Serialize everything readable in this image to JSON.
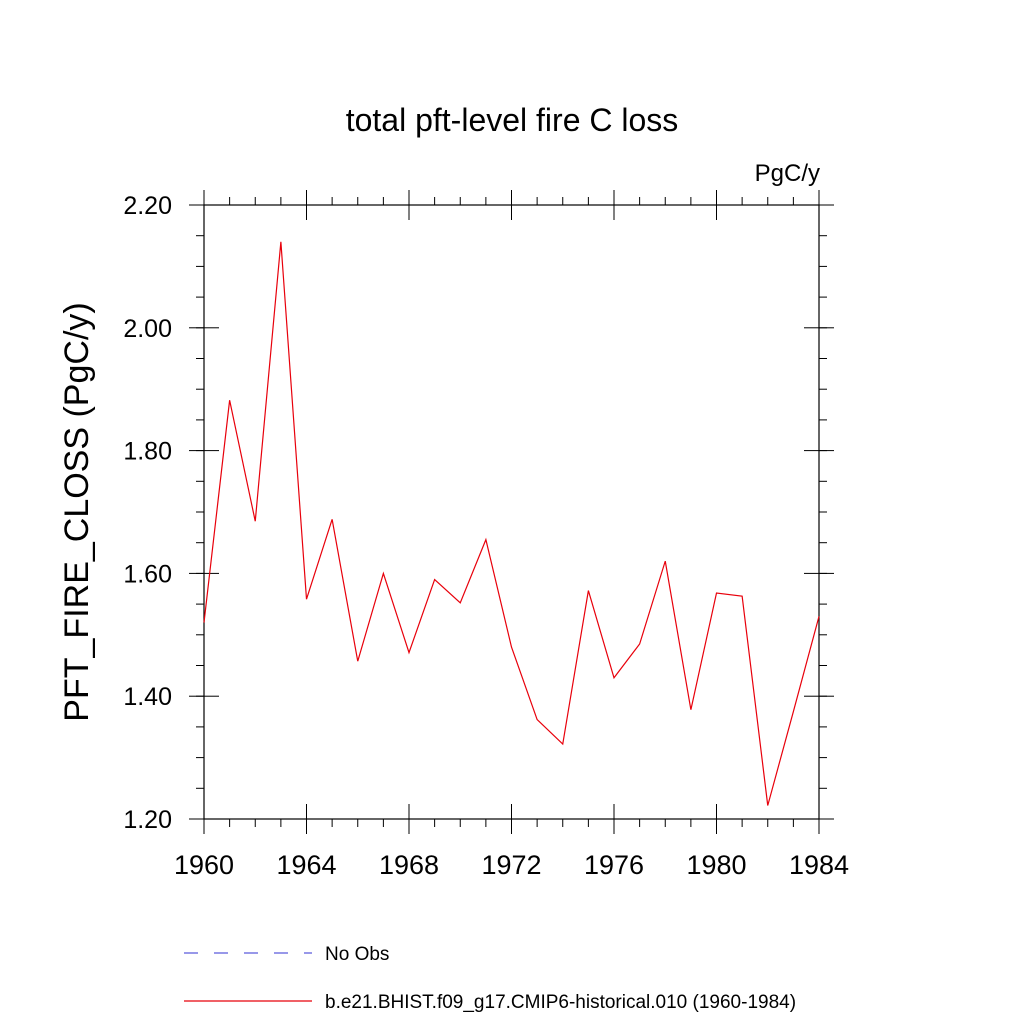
{
  "chart_data": {
    "type": "line",
    "title": "total pft-level fire C loss",
    "units": "PgC/y",
    "ylabel": "PFT_FIRE_CLOSS  (PgC/y)",
    "xlabel": "",
    "xlim": [
      1960,
      1984
    ],
    "ylim": [
      1.2,
      2.2
    ],
    "x_major_ticks": [
      1960,
      1964,
      1968,
      1972,
      1976,
      1980,
      1984
    ],
    "x_minor_step": 1,
    "y_major_ticks": [
      1.2,
      1.4,
      1.6,
      1.8,
      2.0,
      2.2
    ],
    "y_tick_labels": [
      "1.20",
      "1.40",
      "1.60",
      "1.80",
      "2.00",
      "2.20"
    ],
    "y_minor_step": 0.05,
    "grid": false,
    "legend_placement": "bottom",
    "x": [
      1960,
      1961,
      1962,
      1963,
      1964,
      1965,
      1966,
      1967,
      1968,
      1969,
      1970,
      1971,
      1972,
      1973,
      1974,
      1975,
      1976,
      1977,
      1978,
      1979,
      1980,
      1981,
      1982,
      1983,
      1984
    ],
    "series": [
      {
        "name": "b.e21.BHIST.f09_g17.CMIP6-historical.010 (1960-1984)",
        "color": "#e8000b",
        "style": "solid",
        "values": [
          1.52,
          1.882,
          1.685,
          2.14,
          1.558,
          1.688,
          1.457,
          1.6,
          1.471,
          1.59,
          1.552,
          1.655,
          1.48,
          1.362,
          1.322,
          1.572,
          1.43,
          1.485,
          1.62,
          1.378,
          1.568,
          1.563,
          1.222,
          1.375,
          1.53
        ]
      }
    ],
    "legend": [
      {
        "label": "No Obs",
        "color": "#5a5adc",
        "style": "dashed"
      },
      {
        "label": "b.e21.BHIST.f09_g17.CMIP6-historical.010 (1960-1984)",
        "color": "#e8000b",
        "style": "solid"
      }
    ]
  }
}
